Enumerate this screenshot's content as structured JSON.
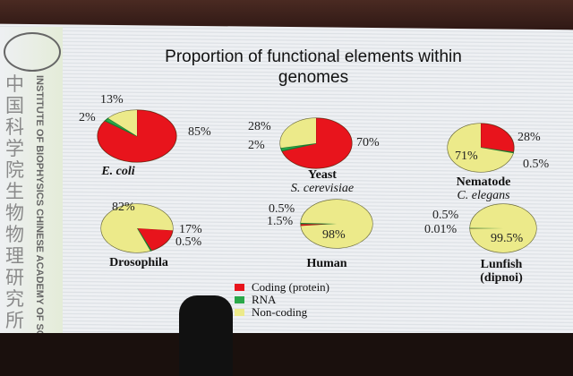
{
  "logo": {
    "chinese_text": "中国科学院生物物理研究所",
    "english_text": "INSTITUTE OF BIOPHYSICS CHINESE ACADEMY OF SCIENCES"
  },
  "chart_data": {
    "type": "pie",
    "title": "Proportion of functional elements within genomes",
    "title_line1": "Proportion of functional elements within",
    "title_line2": "genomes",
    "categories": [
      "Coding (protein)",
      "RNA",
      "Non-coding"
    ],
    "colors": [
      "#e8141c",
      "#2aa84a",
      "#ecea8a"
    ],
    "pies": [
      {
        "name": "E. coli",
        "subname": "",
        "values": [
          85,
          2,
          13
        ],
        "labels": [
          "85%",
          "2%",
          "13%"
        ]
      },
      {
        "name": "Yeast",
        "subname": "S. cerevisiae",
        "values": [
          70,
          2,
          28
        ],
        "labels": [
          "70%",
          "2%",
          "28%"
        ]
      },
      {
        "name": "Nematode",
        "subname": "C. elegans",
        "values": [
          28,
          0.5,
          71
        ],
        "labels": [
          "28%",
          "0.5%",
          "71%"
        ]
      },
      {
        "name": "Drosophila",
        "subname": "",
        "values": [
          17,
          0.5,
          82
        ],
        "labels": [
          "17%",
          "0.5%",
          "82%"
        ]
      },
      {
        "name": "Human",
        "subname": "",
        "values": [
          1.5,
          0.5,
          98
        ],
        "labels": [
          "1.5%",
          "0.5%",
          "98%"
        ]
      },
      {
        "name": "Lunfish",
        "subname": "(dipnoi)",
        "values": [
          0.5,
          0.01,
          99.5
        ],
        "labels": [
          "0.5%",
          "0.01%",
          "99.5%"
        ]
      }
    ],
    "legend": [
      "Coding (protein)",
      "RNA",
      "Non-coding"
    ],
    "legend_placement": "bottom-center"
  }
}
